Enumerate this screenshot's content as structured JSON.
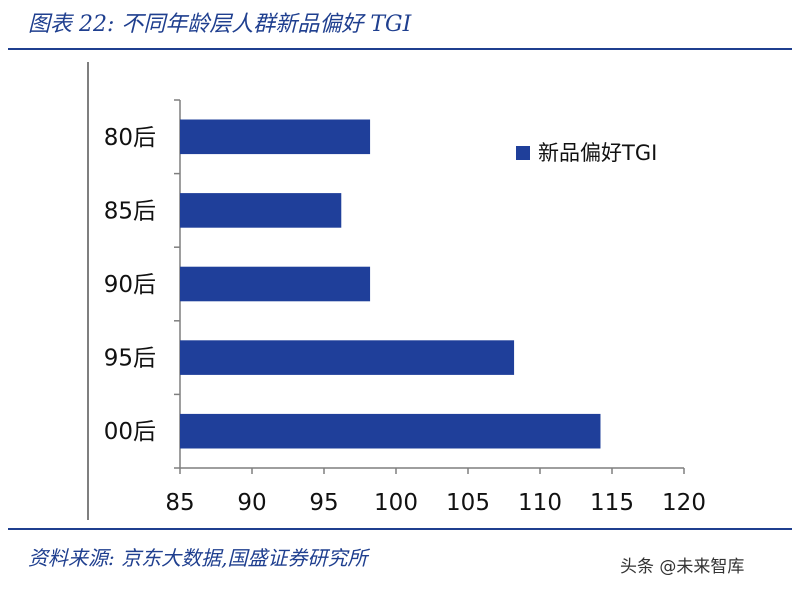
{
  "figure": {
    "title": "图表 22:  不同年龄层人群新品偏好 TGI",
    "source": "资料来源:  京东大数据,国盛证券研究所",
    "watermark": "头条 @未来智库"
  },
  "chart_data": {
    "type": "bar",
    "orientation": "horizontal",
    "title": "",
    "xlabel": "",
    "ylabel": "",
    "categories": [
      "80后",
      "85后",
      "90后",
      "95后",
      "00后"
    ],
    "series": [
      {
        "name": "新品偏好TGI",
        "values": [
          98.2,
          96.2,
          98.2,
          108.2,
          114.2
        ],
        "color": "#1f3f9a"
      }
    ],
    "xlim": [
      85,
      120
    ],
    "x_ticks": [
      "85",
      "90",
      "95",
      "100",
      "105",
      "110",
      "115",
      "120"
    ],
    "grid": false,
    "legend": "top-right"
  }
}
